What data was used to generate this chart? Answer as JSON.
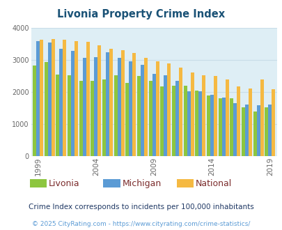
{
  "title": "Livonia Property Crime Index",
  "years": [
    1999,
    2000,
    2001,
    2002,
    2003,
    2004,
    2005,
    2006,
    2007,
    2008,
    2009,
    2010,
    2011,
    2012,
    2013,
    2014,
    2015,
    2016,
    2017,
    2018,
    2019
  ],
  "livonia_vals": [
    2820,
    2920,
    2540,
    2520,
    2350,
    2340,
    2400,
    2530,
    2280,
    2500,
    2350,
    2170,
    2200,
    2200,
    2050,
    1900,
    1800,
    1800,
    1520,
    1400,
    1520
  ],
  "michigan_vals": [
    3580,
    3540,
    3350,
    3280,
    3060,
    3080,
    3230,
    3070,
    2950,
    2840,
    2560,
    2530,
    2340,
    2030,
    2020,
    1920,
    1820,
    1650,
    1620,
    1580,
    1600
  ],
  "national_vals": [
    3620,
    3650,
    3620,
    3590,
    3550,
    3450,
    3340,
    3290,
    3210,
    3050,
    2960,
    2880,
    2750,
    2610,
    2510,
    2490,
    2380,
    2170,
    2100,
    2380,
    2090
  ],
  "color_livonia": "#8dc63f",
  "color_michigan": "#5b9bd5",
  "color_national": "#f5b942",
  "bg_color": "#deeef5",
  "ylim": [
    0,
    4000
  ],
  "yticks": [
    0,
    1000,
    2000,
    3000,
    4000
  ],
  "xtick_years": [
    1999,
    2004,
    2009,
    2014,
    2019
  ],
  "subtitle": "Crime Index corresponds to incidents per 100,000 inhabitants",
  "footer": "© 2025 CityRating.com - https://www.cityrating.com/crime-statistics/",
  "title_color": "#1a5276",
  "subtitle_color": "#1f3864",
  "footer_color": "#5b9bd5",
  "grid_color": "#c8dce8",
  "legend_label_color": "#7b2c2c"
}
